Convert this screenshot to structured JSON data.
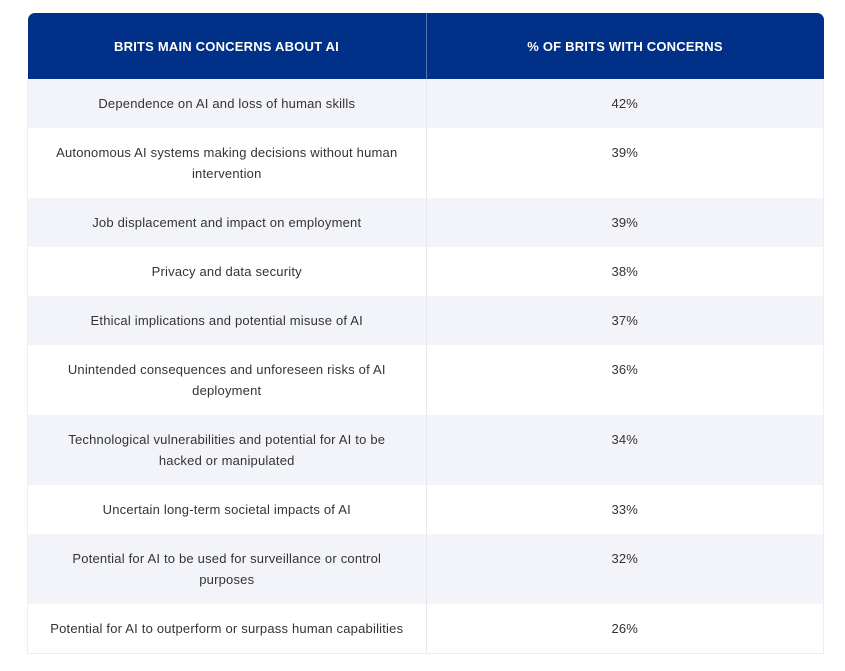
{
  "table": {
    "headers": [
      "BRITS MAIN CONCERNS ABOUT AI",
      "% OF BRITS WITH CONCERNS"
    ],
    "rows": [
      {
        "concern": "Dependence on AI and loss of human skills",
        "percent": "42%"
      },
      {
        "concern": "Autonomous AI systems making decisions without human intervention",
        "percent": "39%"
      },
      {
        "concern": "Job displacement and impact on employment",
        "percent": "39%"
      },
      {
        "concern": "Privacy and data security",
        "percent": "38%"
      },
      {
        "concern": "Ethical implications and potential misuse of AI",
        "percent": "37%"
      },
      {
        "concern": "Unintended consequences and unforeseen risks of AI deployment",
        "percent": "36%"
      },
      {
        "concern": "Technological vulnerabilities and potential for AI to be hacked or manipulated",
        "percent": "34%"
      },
      {
        "concern": "Uncertain long-term societal impacts of AI",
        "percent": "33%"
      },
      {
        "concern": "Potential for AI to be used for surveillance or control purposes",
        "percent": "32%"
      },
      {
        "concern": "Potential for AI to outperform or surpass human capabilities",
        "percent": "26%"
      }
    ]
  },
  "colors": {
    "header": "#003087",
    "row_alt": "#f3f4f9"
  }
}
